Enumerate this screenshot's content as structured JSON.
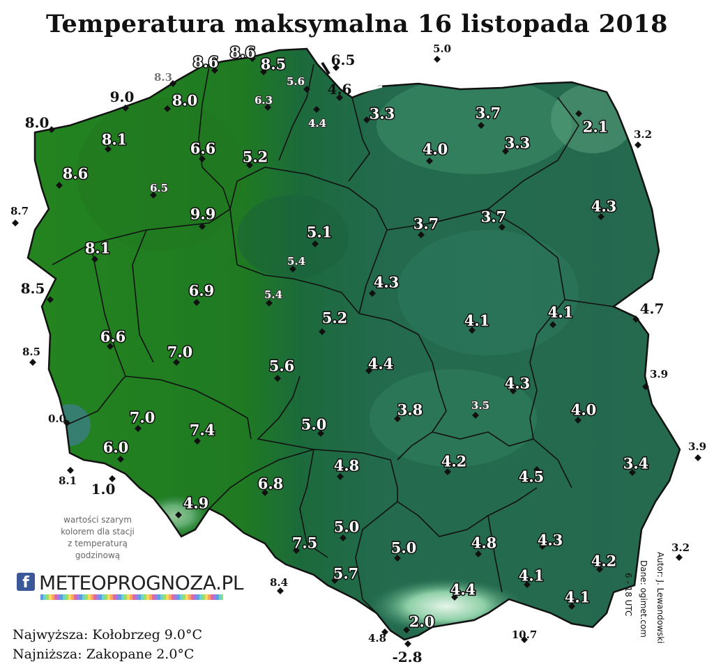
{
  "title": "Temperatura maksymalna 16 listopada 2018",
  "note": [
    "wartości szarym",
    "kolorem dla stacji",
    "z temperaturą",
    "godzinową"
  ],
  "logo": {
    "fb_glyph": "f",
    "text": "METEOPROGNOZA.PL"
  },
  "summary": {
    "max": "Najwyższa: Kołobrzeg 9.0°C",
    "min": "Najniższa: Zakopane 2.0°C"
  },
  "credits": {
    "author": "Autor: J. Lewandowski",
    "data": "Dane: ogimet.com",
    "hours": "6 - 18 UTC"
  },
  "colors": {
    "west_green": "#1f7a1c",
    "east_teal": "#23694d",
    "light_teal": "#3b8c66",
    "mountains": "#8fd0a8",
    "borders": "#111111"
  },
  "stations": [
    {
      "v": "8.6",
      "s": "w"
    },
    {
      "v": "8.6",
      "s": "w"
    },
    {
      "v": "8.5",
      "s": "w"
    },
    {
      "v": "6.5",
      "s": "b"
    },
    {
      "v": "5.0",
      "s": "b"
    },
    {
      "v": "8.3",
      "s": "g"
    },
    {
      "v": "5.6",
      "s": "wg"
    },
    {
      "v": "9.0",
      "s": "b"
    },
    {
      "v": "8.0",
      "s": "w"
    },
    {
      "v": "6.3",
      "s": "wg"
    },
    {
      "v": "4.6",
      "s": "b"
    },
    {
      "v": "4.4",
      "s": "wg"
    },
    {
      "v": "3.3",
      "s": "w"
    },
    {
      "v": "3.7",
      "s": "w"
    },
    {
      "v": "8.0",
      "s": "b"
    },
    {
      "v": "8.1",
      "s": "w"
    },
    {
      "v": "2.1",
      "s": "w"
    },
    {
      "v": "3.2",
      "s": "b"
    },
    {
      "v": "6.6",
      "s": "w"
    },
    {
      "v": "5.2",
      "s": "w"
    },
    {
      "v": "4.0",
      "s": "w"
    },
    {
      "v": "3.3",
      "s": "w"
    },
    {
      "v": "8.6",
      "s": "w"
    },
    {
      "v": "6.5",
      "s": "wg"
    },
    {
      "v": "8.7",
      "s": "b"
    },
    {
      "v": "9.9",
      "s": "w"
    },
    {
      "v": "5.1",
      "s": "w"
    },
    {
      "v": "3.7",
      "s": "w"
    },
    {
      "v": "3.7",
      "s": "w"
    },
    {
      "v": "4.3",
      "s": "w"
    },
    {
      "v": "8.1",
      "s": "w"
    },
    {
      "v": "5.4",
      "s": "wg"
    },
    {
      "v": "8.5",
      "s": "b"
    },
    {
      "v": "6.9",
      "s": "w"
    },
    {
      "v": "5.4",
      "s": "wg"
    },
    {
      "v": "4.3",
      "s": "w"
    },
    {
      "v": "5.2",
      "s": "w"
    },
    {
      "v": "4.1",
      "s": "w"
    },
    {
      "v": "4.1",
      "s": "w"
    },
    {
      "v": "4.7",
      "s": "b"
    },
    {
      "v": "6.6",
      "s": "w"
    },
    {
      "v": "8.5",
      "s": "b"
    },
    {
      "v": "7.0",
      "s": "w"
    },
    {
      "v": "5.6",
      "s": "w"
    },
    {
      "v": "4.4",
      "s": "w"
    },
    {
      "v": "4.3",
      "s": "w"
    },
    {
      "v": "3.9",
      "s": "b"
    },
    {
      "v": "3.8",
      "s": "w"
    },
    {
      "v": "3.5",
      "s": "wg"
    },
    {
      "v": "4.0",
      "s": "w"
    },
    {
      "v": "0.0",
      "s": "b"
    },
    {
      "v": "7.0",
      "s": "w"
    },
    {
      "v": "7.4",
      "s": "w"
    },
    {
      "v": "5.0",
      "s": "w"
    },
    {
      "v": "6.0",
      "s": "w"
    },
    {
      "v": "3.9",
      "s": "b"
    },
    {
      "v": "4.2",
      "s": "w"
    },
    {
      "v": "3.4",
      "s": "w"
    },
    {
      "v": "4.8",
      "s": "w"
    },
    {
      "v": "8.1",
      "s": "b"
    },
    {
      "v": "1.0",
      "s": "b"
    },
    {
      "v": "6.8",
      "s": "w"
    },
    {
      "v": "4.5",
      "s": "w"
    },
    {
      "v": "4.9",
      "s": "w"
    },
    {
      "v": "5.0",
      "s": "w"
    },
    {
      "v": "7.5",
      "s": "w"
    },
    {
      "v": "5.0",
      "s": "w"
    },
    {
      "v": "4.8",
      "s": "w"
    },
    {
      "v": "4.3",
      "s": "w"
    },
    {
      "v": "3.2",
      "s": "b"
    },
    {
      "v": "4.2",
      "s": "w"
    },
    {
      "v": "5.7",
      "s": "w"
    },
    {
      "v": "8.4",
      "s": "b"
    },
    {
      "v": "4.4",
      "s": "w"
    },
    {
      "v": "4.1",
      "s": "w"
    },
    {
      "v": "4.1",
      "s": "w"
    },
    {
      "v": "2.0",
      "s": "w"
    },
    {
      "v": "4.8",
      "s": "b"
    },
    {
      "v": "-2.8",
      "s": "b"
    },
    {
      "v": "10.7",
      "s": "b"
    }
  ]
}
